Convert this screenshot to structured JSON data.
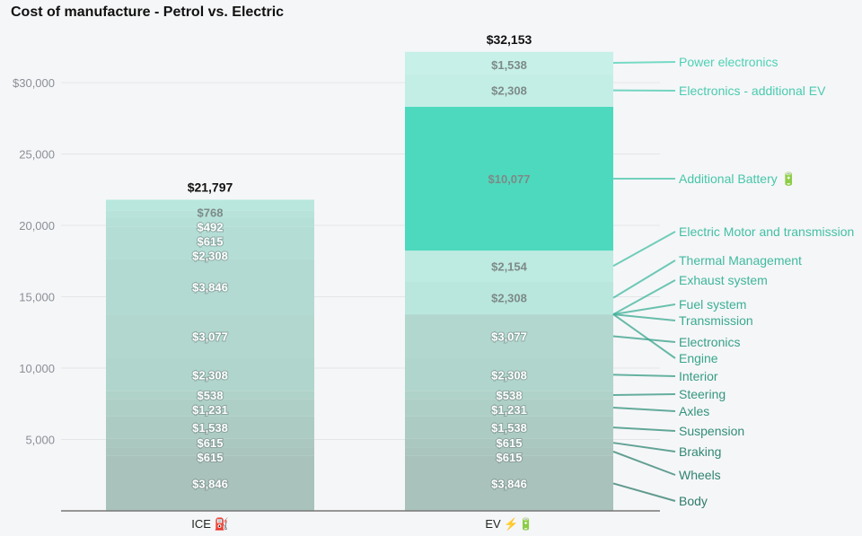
{
  "chart_data": {
    "type": "bar",
    "stacked": true,
    "title": "Cost of manufacture - Petrol vs. Electric",
    "categories": [
      "ICE ⛽",
      "EV ⚡🔋"
    ],
    "totals": [
      "$21,797",
      "$32,153"
    ],
    "ylim": [
      0,
      32153
    ],
    "yticks": [
      5000,
      10000,
      15000,
      20000,
      25000,
      30000
    ],
    "ytick_labels": [
      "5,000",
      "10,000",
      "15,000",
      "20,000",
      "25,000",
      "$30,000"
    ],
    "grid": true,
    "legend": "direct labels right",
    "series": [
      {
        "name": "Body",
        "values": [
          3846,
          3846
        ],
        "color": "#a9c2bc",
        "label_color": "#2f7d6b"
      },
      {
        "name": "Wheels",
        "values": [
          615,
          615
        ],
        "color": "#aac5be",
        "label_color": "#308370"
      },
      {
        "name": "Braking",
        "values": [
          615,
          615
        ],
        "color": "#abc8c0",
        "label_color": "#318874"
      },
      {
        "name": "Suspension",
        "values": [
          1538,
          1538
        ],
        "color": "#acccc3",
        "label_color": "#328d78"
      },
      {
        "name": "Axles",
        "values": [
          1231,
          1231
        ],
        "color": "#aecfc6",
        "label_color": "#33927c"
      },
      {
        "name": "Steering",
        "values": [
          538,
          538
        ],
        "color": "#afd2c9",
        "label_color": "#349780"
      },
      {
        "name": "Interior",
        "values": [
          2308,
          2308
        ],
        "color": "#b0d5cc",
        "label_color": "#369c84"
      },
      {
        "name": "Electronics",
        "values": [
          3077,
          3077
        ],
        "color": "#b1d7cf",
        "label_color": "#37a088"
      },
      {
        "name": "Engine",
        "values": [
          3846,
          0
        ],
        "color": "#b2dad2",
        "label_color": "#38a58c"
      },
      {
        "name": "Transmission",
        "values": [
          2308,
          0
        ],
        "color": "#b3ddd5",
        "label_color": "#3aaa91"
      },
      {
        "name": "Fuel system",
        "values": [
          615,
          0
        ],
        "color": "#b5e0d8",
        "label_color": "#3cb096"
      },
      {
        "name": "Exhaust system",
        "values": [
          492,
          0
        ],
        "color": "#b7e3db",
        "label_color": "#3eb59b"
      },
      {
        "name": "Thermal Management",
        "values": [
          768,
          2308
        ],
        "color": "#b9e7de",
        "label_color": "#40baa0"
      },
      {
        "name": "Electric Motor and transmission",
        "values": [
          0,
          2154
        ],
        "color": "#bdeae1",
        "label_color": "#43c0a5"
      },
      {
        "name": "Additional Battery 🔋",
        "values": [
          0,
          10077
        ],
        "color": "#4dd9bd",
        "label_color": "#46c6aa"
      },
      {
        "name": "Electronics - additional EV",
        "values": [
          0,
          2308
        ],
        "color": "#c3eee6",
        "label_color": "#4acbb0"
      },
      {
        "name": "Power electronics",
        "values": [
          0,
          1538
        ],
        "color": "#c6f0e8",
        "label_color": "#4ed1b5"
      }
    ]
  }
}
